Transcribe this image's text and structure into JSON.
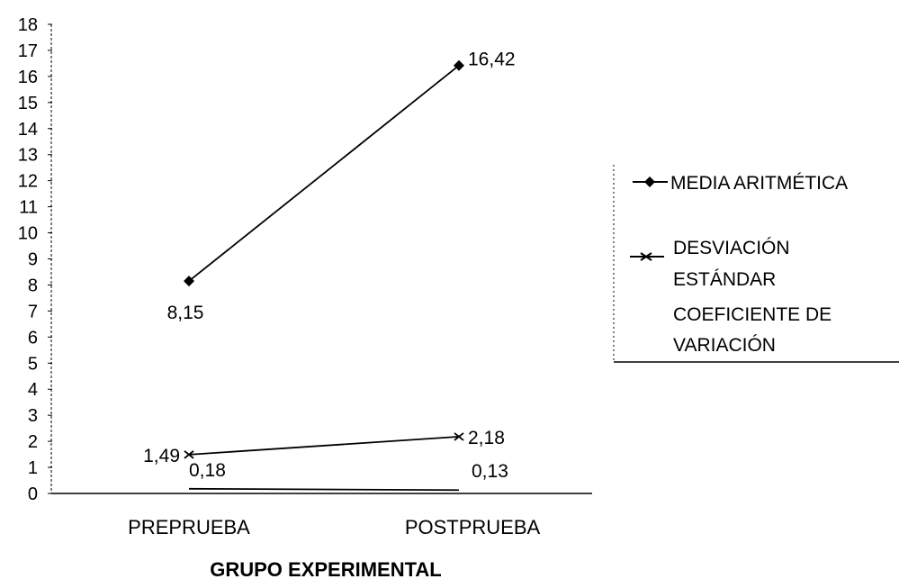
{
  "chart_data": {
    "type": "line",
    "xlabel": "GRUPO EXPERIMENTAL",
    "ylabel": "",
    "ylim": [
      0,
      18
    ],
    "yticks": [
      0,
      1,
      2,
      3,
      4,
      5,
      6,
      7,
      8,
      9,
      10,
      11,
      12,
      13,
      14,
      15,
      16,
      17,
      18
    ],
    "categories": [
      "PREPRUEBA",
      "POSTPRUEBA"
    ],
    "grid": false,
    "legend_position": "right",
    "series": [
      {
        "name": "MEDIA ARITMÉTICA",
        "values": [
          8.15,
          16.42
        ],
        "labels": [
          "8,15",
          "16,42"
        ],
        "marker": "diamond",
        "color": "#000000"
      },
      {
        "name": "DESVIACIÓN ESTÁNDAR",
        "values": [
          1.49,
          2.18
        ],
        "labels": [
          "1,49",
          "2,18"
        ],
        "marker": "star",
        "color": "#000000"
      },
      {
        "name": "COEFICIENTE DE VARIACIÓN",
        "values": [
          0.18,
          0.13
        ],
        "labels": [
          "0,18",
          "0,13"
        ],
        "marker": "none",
        "color": "#000000"
      }
    ]
  }
}
